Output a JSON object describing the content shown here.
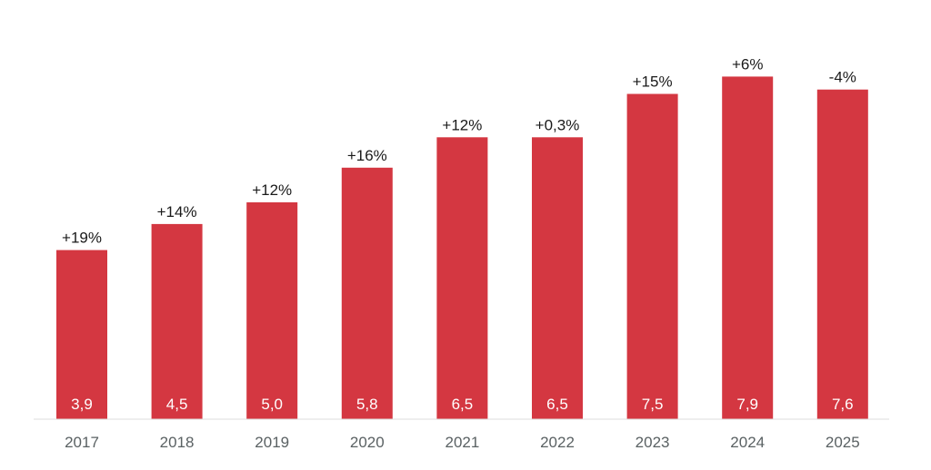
{
  "chart_data": {
    "type": "bar",
    "categories": [
      "2017",
      "2018",
      "2019",
      "2020",
      "2021",
      "2022",
      "2023",
      "2024",
      "2025"
    ],
    "values": [
      3.9,
      4.5,
      5.0,
      5.8,
      6.5,
      6.5,
      7.5,
      7.9,
      7.6
    ],
    "value_labels": [
      "3,9",
      "4,5",
      "5,0",
      "5,8",
      "6,5",
      "6,5",
      "7,5",
      "7,9",
      "7,6"
    ],
    "change_labels": [
      "+19%",
      "+14%",
      "+12%",
      "+16%",
      "+12%",
      "+0,3%",
      "+15%",
      "+6%",
      "-4%"
    ],
    "title": "",
    "xlabel": "",
    "ylabel": "",
    "ylim": [
      0,
      8.5
    ],
    "grid": false,
    "legend": "none",
    "bar_color": "#d43741",
    "axis_color": "#dcdcdc"
  }
}
